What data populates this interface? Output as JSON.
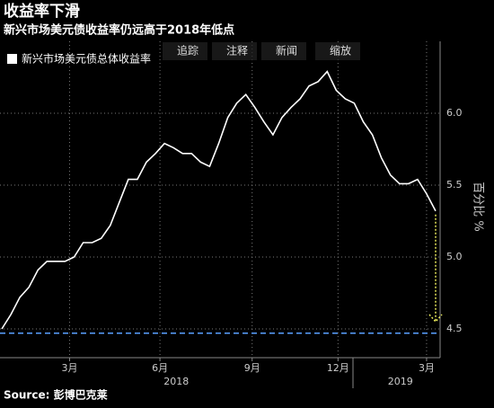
{
  "chart_data": {
    "type": "line",
    "title": "收益率下滑",
    "subtitle": "新兴市场美元债收益率仍远高于2018年低点",
    "y_axis_label": "百分比 %",
    "source": "Source: 彭博巴克莱",
    "toolbar": [
      "追踪",
      "注释",
      "新闻",
      "缩放"
    ],
    "series": [
      {
        "name": "新兴市场美元债总体收益率",
        "color": "#ffffff",
        "values": [
          4.5,
          4.6,
          4.72,
          4.79,
          4.91,
          4.97,
          4.97,
          4.97,
          5.0,
          5.1,
          5.1,
          5.13,
          5.22,
          5.38,
          5.54,
          5.54,
          5.66,
          5.72,
          5.79,
          5.76,
          5.72,
          5.72,
          5.66,
          5.63,
          5.79,
          5.97,
          6.07,
          6.13,
          6.04,
          5.94,
          5.85,
          5.97,
          6.04,
          6.1,
          6.19,
          6.22,
          6.29,
          6.16,
          6.1,
          6.07,
          5.94,
          5.85,
          5.69,
          5.57,
          5.51,
          5.51,
          5.54,
          5.44,
          5.32
        ]
      }
    ],
    "xlim": [
      0,
      48
    ],
    "xticks": [
      {
        "value": 7.5,
        "label": "3月"
      },
      {
        "value": 17.5,
        "label": "6月"
      },
      {
        "value": 27.7,
        "label": "9月"
      },
      {
        "value": 37.2,
        "label": "12月"
      },
      {
        "value": 47,
        "label": "3月"
      }
    ],
    "year_labels": [
      {
        "value": 19.3,
        "label": "2018"
      },
      {
        "value": 44.1,
        "label": "2019"
      }
    ],
    "ylim": [
      4.3,
      6.5
    ],
    "yticks": [
      4.5,
      {
        "value": 5.0,
        "label": "5.0"
      },
      5.5,
      {
        "value": 6.0,
        "label": "6.0"
      }
    ],
    "reference_line": {
      "value": 4.47,
      "color": "#5aa0ff"
    },
    "arrow": {
      "to": 4.55,
      "color": "#e8e85a"
    },
    "grid": true
  }
}
